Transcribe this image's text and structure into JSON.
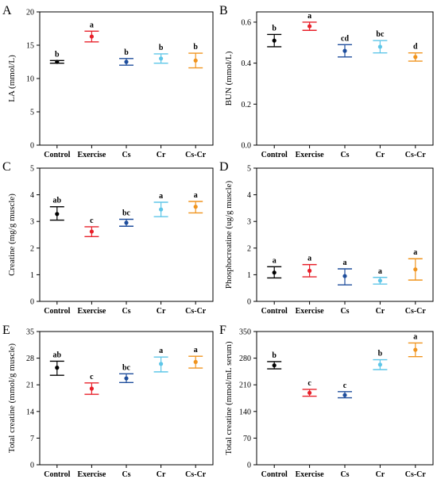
{
  "chart_data": [
    {
      "type": "scatter",
      "panel_letter": "A",
      "ylabel": "LA (mmol/L)",
      "categories": [
        "Control",
        "Exercise",
        "Cs",
        "Cr",
        "Cs-Cr"
      ],
      "ylim": [
        0,
        20
      ],
      "yticks": [
        "0",
        "5",
        "10",
        "15",
        "20"
      ],
      "means": [
        12.5,
        16.3,
        12.5,
        13.0,
        12.7
      ],
      "err_low": [
        12.3,
        15.5,
        12.0,
        12.3,
        11.6
      ],
      "err_high": [
        12.7,
        17.1,
        13.0,
        13.7,
        13.8
      ],
      "letters": [
        "b",
        "a",
        "b",
        "b",
        "b"
      ],
      "colors": [
        "#000000",
        "#e8202a",
        "#1f4e9c",
        "#5ec6e8",
        "#f0941e"
      ]
    },
    {
      "type": "scatter",
      "panel_letter": "B",
      "ylabel": "BUN (mmol/L)",
      "categories": [
        "Control",
        "Exercise",
        "Cs",
        "Cr",
        "Cs-Cr"
      ],
      "ylim": [
        0,
        0.65
      ],
      "yticks": [
        "0.0",
        "0.2",
        "0.4",
        "0.6"
      ],
      "ytick_values": [
        0,
        0.2,
        0.4,
        0.6
      ],
      "means": [
        0.51,
        0.58,
        0.46,
        0.48,
        0.43
      ],
      "err_low": [
        0.48,
        0.56,
        0.43,
        0.45,
        0.41
      ],
      "err_high": [
        0.54,
        0.6,
        0.49,
        0.51,
        0.45
      ],
      "letters": [
        "b",
        "a",
        "cd",
        "bc",
        "d"
      ],
      "colors": [
        "#000000",
        "#e8202a",
        "#1f4e9c",
        "#5ec6e8",
        "#f0941e"
      ]
    },
    {
      "type": "scatter",
      "panel_letter": "C",
      "ylabel": "Creatine (mg/g muscle)",
      "categories": [
        "Control",
        "Exercise",
        "Cs",
        "Cr",
        "Cs-Cr"
      ],
      "ylim": [
        0,
        5
      ],
      "yticks": [
        "0",
        "1",
        "2",
        "3",
        "4",
        "5"
      ],
      "means": [
        3.28,
        2.62,
        2.95,
        3.45,
        3.55
      ],
      "err_low": [
        3.05,
        2.43,
        2.82,
        3.18,
        3.32
      ],
      "err_high": [
        3.55,
        2.8,
        3.08,
        3.72,
        3.75
      ],
      "letters": [
        "ab",
        "c",
        "bc",
        "a",
        "a"
      ],
      "colors": [
        "#000000",
        "#e8202a",
        "#1f4e9c",
        "#5ec6e8",
        "#f0941e"
      ]
    },
    {
      "type": "scatter",
      "panel_letter": "D",
      "ylabel": "Phosphocreatine (ug/g muscle)",
      "categories": [
        "Control",
        "Exercise",
        "Cs",
        "Cr",
        "Cs-Cr"
      ],
      "ylim": [
        0,
        5
      ],
      "yticks": [
        "0",
        "1",
        "2",
        "3",
        "4",
        "5"
      ],
      "means": [
        1.08,
        1.15,
        0.95,
        0.78,
        1.2
      ],
      "err_low": [
        0.88,
        0.92,
        0.62,
        0.65,
        0.8
      ],
      "err_high": [
        1.3,
        1.38,
        1.22,
        0.9,
        1.6
      ],
      "letters": [
        "a",
        "a",
        "a",
        "a",
        "a"
      ],
      "colors": [
        "#000000",
        "#e8202a",
        "#1f4e9c",
        "#5ec6e8",
        "#f0941e"
      ]
    },
    {
      "type": "scatter",
      "panel_letter": "E",
      "ylabel": "Total creatine (mmol/g muscle)",
      "categories": [
        "Control",
        "Exercise",
        "Cs",
        "Cr",
        "Cs-Cr"
      ],
      "ylim": [
        0,
        35
      ],
      "yticks": [
        "0",
        "7",
        "14",
        "21",
        "28",
        "35"
      ],
      "means": [
        25.5,
        20.0,
        22.7,
        26.5,
        27.0
      ],
      "err_low": [
        23.5,
        18.5,
        21.6,
        24.4,
        25.4
      ],
      "err_high": [
        27.2,
        21.5,
        23.9,
        28.3,
        28.5
      ],
      "letters": [
        "ab",
        "c",
        "bc",
        "a",
        "a"
      ],
      "colors": [
        "#000000",
        "#e8202a",
        "#1f4e9c",
        "#5ec6e8",
        "#f0941e"
      ]
    },
    {
      "type": "scatter",
      "panel_letter": "F",
      "ylabel": "Total creatine (mmol/mL serum)",
      "categories": [
        "Control",
        "Exercise",
        "Cs",
        "Cr",
        "Cs-Cr"
      ],
      "ylim": [
        0,
        350
      ],
      "yticks": [
        "0",
        "70",
        "140",
        "210",
        "280",
        "350"
      ],
      "means": [
        261,
        189,
        183,
        263,
        302
      ],
      "err_low": [
        252,
        180,
        176,
        250,
        284
      ],
      "err_high": [
        271,
        198,
        192,
        276,
        320
      ],
      "letters": [
        "b",
        "c",
        "c",
        "b",
        "a"
      ],
      "colors": [
        "#000000",
        "#e8202a",
        "#1f4e9c",
        "#5ec6e8",
        "#f0941e"
      ]
    }
  ]
}
